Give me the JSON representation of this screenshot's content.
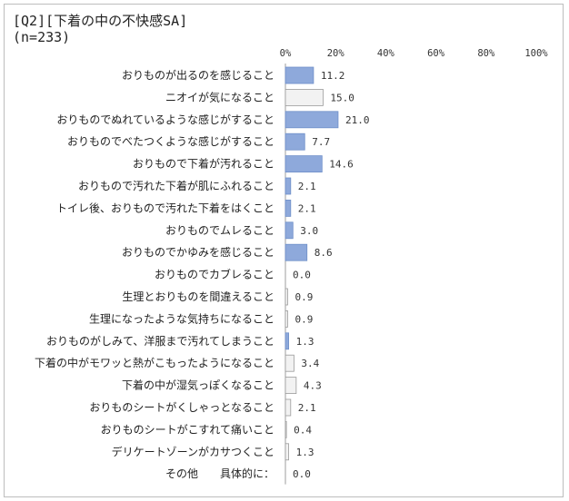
{
  "header": {
    "title": "[Q2][下着の中の不快感SA]",
    "subtitle": "(n=233)"
  },
  "colors": {
    "bar_blue": "#8ea9db",
    "bar_blue_stroke": "#6f8fc9",
    "bar_light": "#f2f2f2",
    "bar_light_stroke": "#9a9a9a",
    "axis": "#9e9e9e"
  },
  "chart_data": {
    "type": "bar",
    "orientation": "horizontal",
    "title": "[Q2][下着の中の不快感SA]",
    "subtitle": "(n=233)",
    "xlabel": "",
    "ylabel": "",
    "xlim": [
      0,
      100
    ],
    "grid": false,
    "ticks": [
      "0%",
      "20%",
      "40%",
      "60%",
      "80%",
      "100%"
    ],
    "tick_values": [
      0,
      20,
      40,
      60,
      80,
      100
    ],
    "categories": [
      "おりものが出るのを感じること",
      "ニオイが気になること",
      "おりものでぬれているような感じがすること",
      "おりものでべたつくような感じがすること",
      "おりもので下着が汚れること",
      "おりもので汚れた下着が肌にふれること",
      "トイレ後、おりもので汚れた下着をはくこと",
      "おりものでムレること",
      "おりものでかゆみを感じること",
      "おりものでカブレること",
      "生理とおりものを間違えること",
      "生理になったような気持ちになること",
      "おりものがしみて、洋服まで汚れてしまうこと",
      "下着の中がモワッと熱がこもったようになること",
      "下着の中が湿気っぽくなること",
      "おりものシートがくしゃっとなること",
      "おりものシートがこすれて痛いこと",
      "デリケートゾーンがカサつくこと",
      "その他　　具体的に："
    ],
    "values": [
      11.2,
      15.0,
      21.0,
      7.7,
      14.6,
      2.1,
      2.1,
      3.0,
      8.6,
      0.0,
      0.9,
      0.9,
      1.3,
      3.4,
      4.3,
      2.1,
      0.4,
      1.3,
      0.0
    ],
    "value_labels": [
      "11.2",
      "15.0",
      "21.0",
      "7.7",
      "14.6",
      "2.1",
      "2.1",
      "3.0",
      "8.6",
      "0.0",
      "0.9",
      "0.9",
      "1.3",
      "3.4",
      "4.3",
      "2.1",
      "0.4",
      "1.3",
      "0.0"
    ],
    "highlight": [
      "blue",
      "light",
      "blue",
      "blue",
      "blue",
      "blue",
      "blue",
      "blue",
      "blue",
      "light",
      "light",
      "light",
      "blue",
      "light",
      "light",
      "light",
      "light",
      "light",
      "light"
    ]
  }
}
